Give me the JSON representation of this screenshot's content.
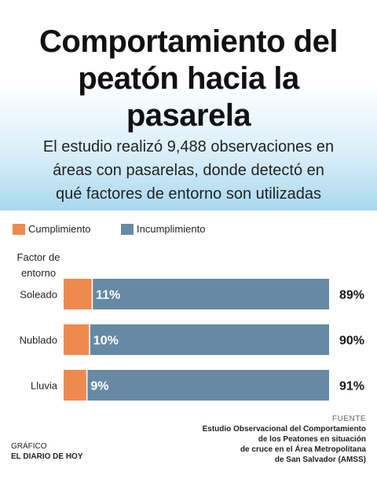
{
  "header": {
    "title_line1": "Comportamiento del",
    "title_line2": "peatón hacia la",
    "title_line3": "pasarela",
    "subtitle_line1": "El estudio realizó 9,488 observaciones en",
    "subtitle_line2": "áreas con pasarelas, donde detectó en",
    "subtitle_line3": "qué factores de entorno son utilizadas"
  },
  "legend": {
    "item1": "Cumplimiento",
    "item2": "Incumplimiento"
  },
  "axis_title_line1": "Factor de",
  "axis_title_line2": "entorno",
  "colors": {
    "cumplimiento": "#ef8a4e",
    "incumplimiento": "#668aa3"
  },
  "chart_data": {
    "type": "bar",
    "orientation": "horizontal",
    "stacked": true,
    "categories": [
      "Soleado",
      "Nublado",
      "Lluvia"
    ],
    "series": [
      {
        "name": "Cumplimiento",
        "values": [
          11,
          10,
          9
        ],
        "labels": [
          "11%",
          "10%",
          "9%"
        ]
      },
      {
        "name": "Incumplimiento",
        "values": [
          89,
          90,
          91
        ],
        "labels": [
          "89%",
          "90%",
          "91%"
        ]
      }
    ],
    "xlim": [
      0,
      100
    ]
  },
  "footer": {
    "credit_line1": "GRÁFICO",
    "credit_line2": "EL DIARIO DE HOY",
    "source_label": "FUENTE",
    "source_line1": "Estudio Observacional del Comportamiento",
    "source_line2": "de los Peatones en situación",
    "source_line3": "de cruce en el Área Metropolitana",
    "source_line4": "de San Salvador (AMSS)"
  }
}
